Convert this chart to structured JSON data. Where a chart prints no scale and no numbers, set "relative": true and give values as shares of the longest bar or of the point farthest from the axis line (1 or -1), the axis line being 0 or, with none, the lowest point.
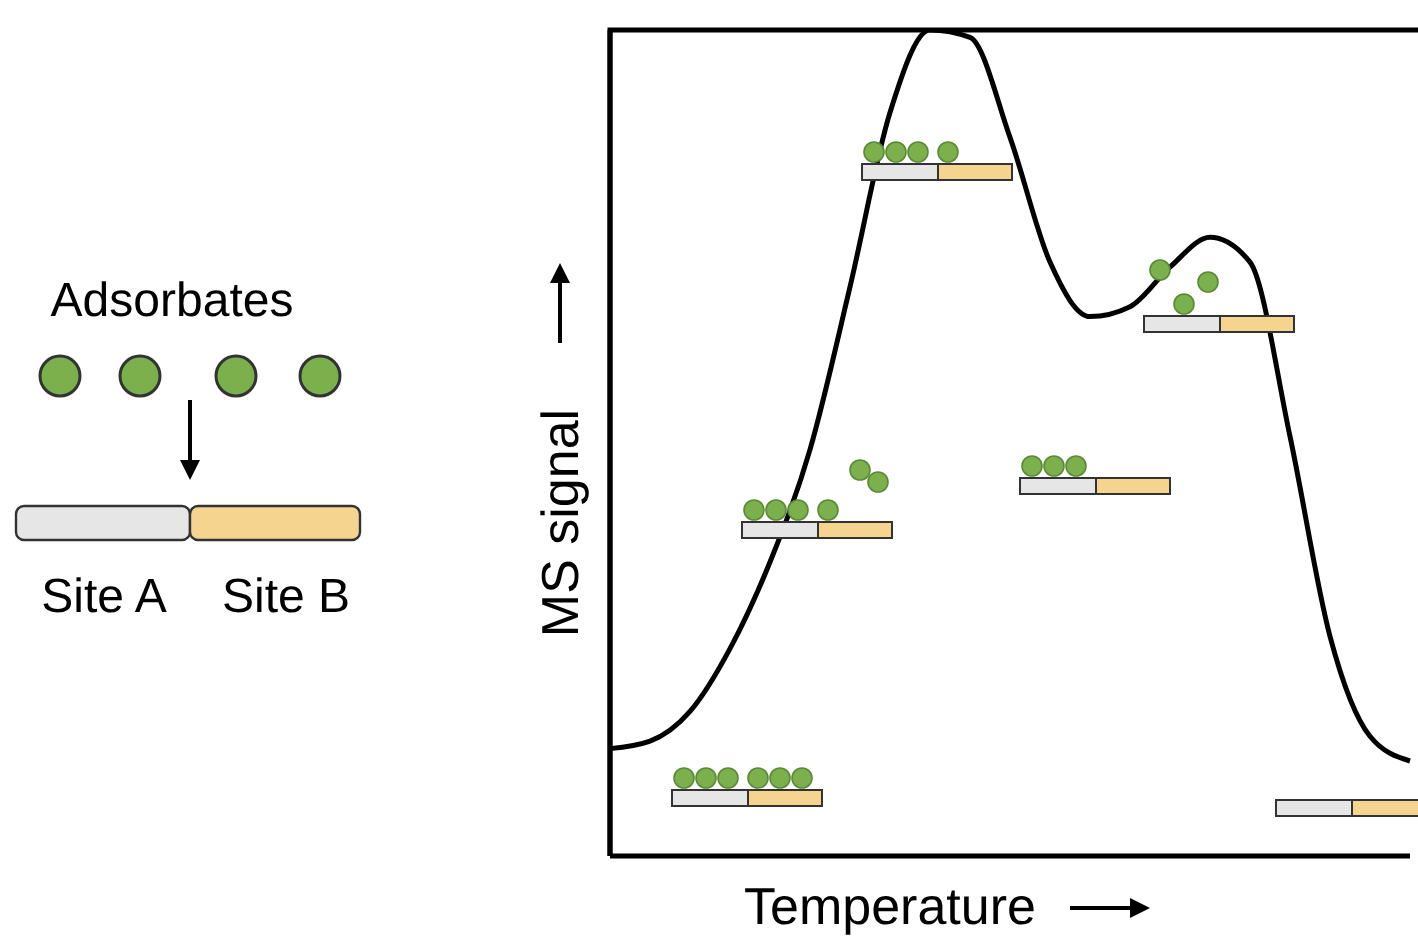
{
  "chart_data": {
    "type": "line",
    "relative": true,
    "xlabel": "Temperature",
    "ylabel": "MS signal",
    "marker": "none",
    "color": "#000000",
    "categories": [
      null,
      null,
      null,
      null,
      null,
      null,
      null,
      null,
      null,
      null,
      null,
      null,
      null,
      null,
      null,
      null,
      null,
      null,
      null,
      null,
      null
    ],
    "values": [
      0.13,
      0.139,
      0.175,
      0.251,
      0.356,
      0.492,
      0.689,
      0.9,
      1,
      0.991,
      0.87,
      0.719,
      0.653,
      0.665,
      0.713,
      0.749,
      0.719,
      0.508,
      0.266,
      0.145,
      0.115
    ],
    "annotations": [
      "Adsorbates",
      "Site A",
      "Site B"
    ]
  }
}
